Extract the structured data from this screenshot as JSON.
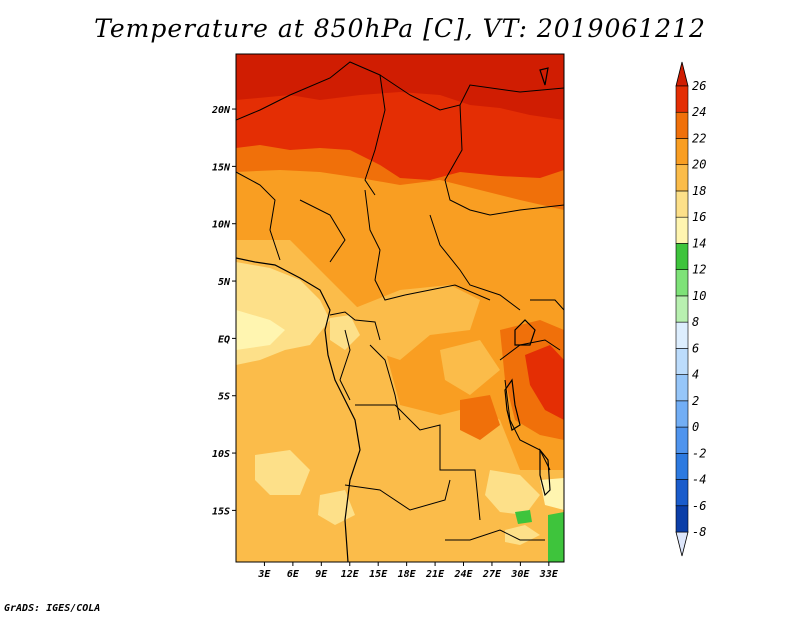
{
  "title": "Temperature at 850hPa [C], VT: 2019061212",
  "credit": "GrADS: IGES/COLA",
  "map": {
    "lon_range": [
      0,
      34.6
    ],
    "lat_range": [
      -19.5,
      24.8
    ],
    "lat_ticks": [
      {
        "value": 20,
        "label": "20N"
      },
      {
        "value": 15,
        "label": "15N"
      },
      {
        "value": 10,
        "label": "10N"
      },
      {
        "value": 5,
        "label": "5N"
      },
      {
        "value": 0,
        "label": "EQ"
      },
      {
        "value": -5,
        "label": "5S"
      },
      {
        "value": -10,
        "label": "10S"
      },
      {
        "value": -15,
        "label": "15S"
      }
    ],
    "lon_ticks": [
      {
        "value": 3,
        "label": "3E"
      },
      {
        "value": 6,
        "label": "6E"
      },
      {
        "value": 9,
        "label": "9E"
      },
      {
        "value": 12,
        "label": "12E"
      },
      {
        "value": 15,
        "label": "15E"
      },
      {
        "value": 18,
        "label": "18E"
      },
      {
        "value": 21,
        "label": "21E"
      },
      {
        "value": 24,
        "label": "24E"
      },
      {
        "value": 27,
        "label": "27E"
      },
      {
        "value": 30,
        "label": "30E"
      },
      {
        "value": 33,
        "label": "33E"
      }
    ],
    "colorbar": {
      "levels": [
        {
          "label": "-8",
          "color": "#0d1670"
        },
        {
          "label": "-6",
          "color": "#0b3ea8"
        },
        {
          "label": "-4",
          "color": "#1a5ccc"
        },
        {
          "label": "-2",
          "color": "#2d7ae0"
        },
        {
          "label": "0",
          "color": "#4f94ee"
        },
        {
          "label": "2",
          "color": "#72aef5"
        },
        {
          "label": "4",
          "color": "#96c6f9"
        },
        {
          "label": "6",
          "color": "#bcdcfc"
        },
        {
          "label": "8",
          "color": "#ddeefe"
        },
        {
          "label": "10",
          "color": "#b8f0b0"
        },
        {
          "label": "12",
          "color": "#7ee278"
        },
        {
          "label": "14",
          "color": "#3ec43c"
        },
        {
          "label": "16",
          "color": "#fff5b0"
        },
        {
          "label": "18",
          "color": "#fde089"
        },
        {
          "label": "20",
          "color": "#fbbc4a"
        },
        {
          "label": "22",
          "color": "#f99e22"
        },
        {
          "label": "24",
          "color": "#f0700a"
        },
        {
          "label": "26",
          "color": "#e42e04"
        }
      ],
      "under_color": "#dde6fb",
      "over_color": "#d01d02"
    }
  }
}
